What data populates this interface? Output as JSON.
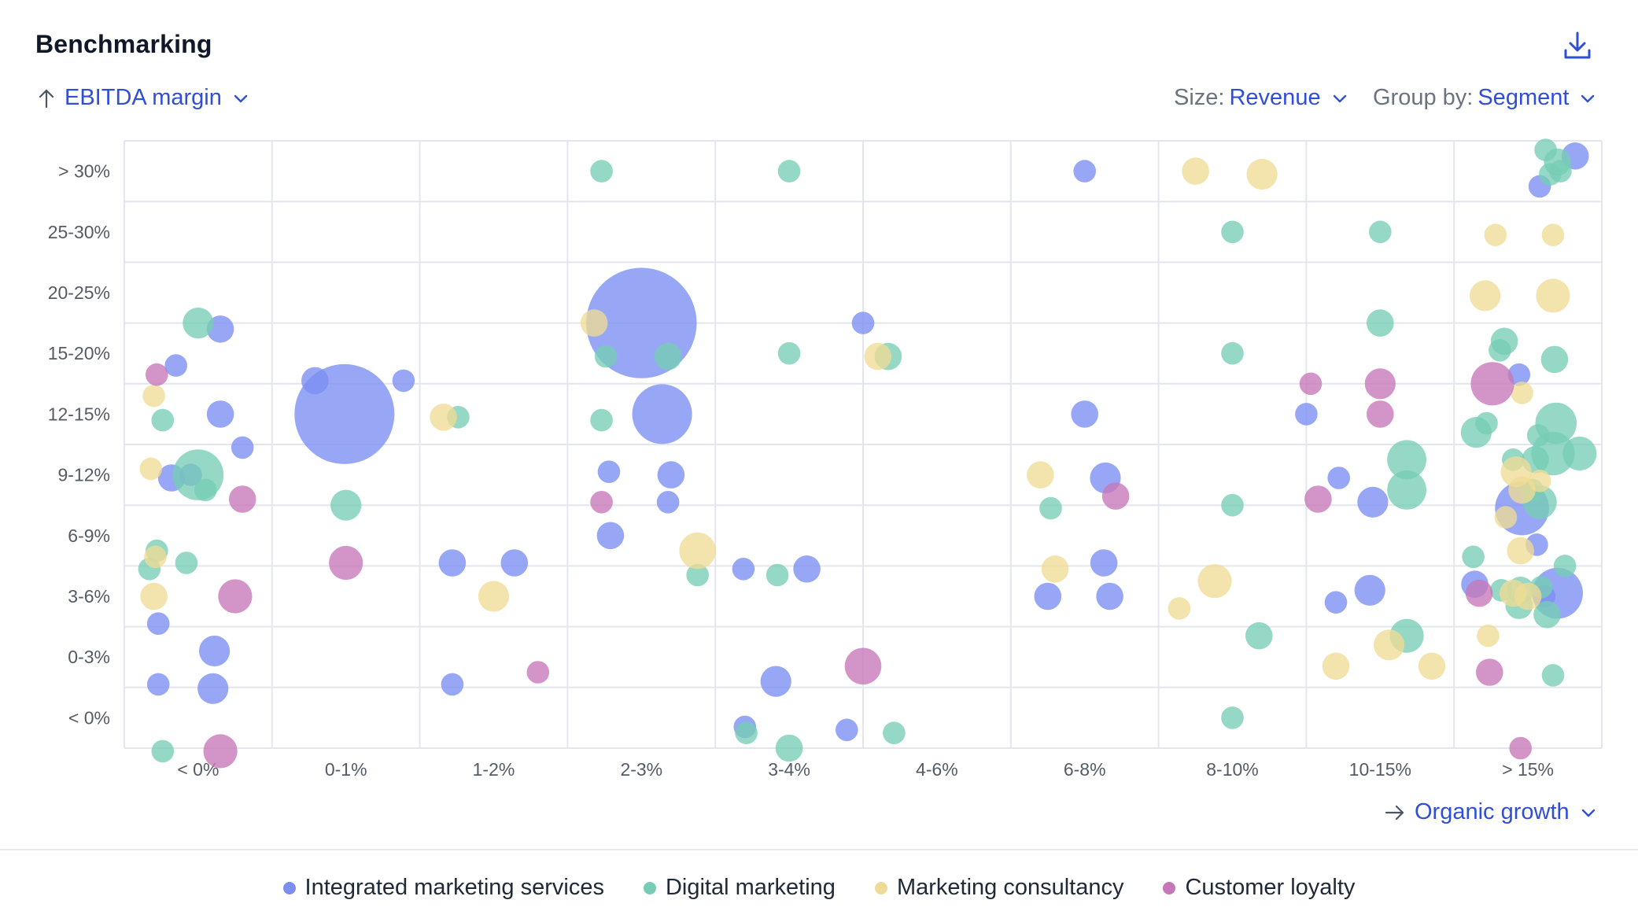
{
  "header": {
    "title": "Benchmarking",
    "download_icon": "download-icon"
  },
  "controls": {
    "y_axis": {
      "arrow_icon": "arrow-up-icon",
      "label": "EBITDA margin",
      "chevron_icon": "chevron-down-icon"
    },
    "size": {
      "prefix": "Size:",
      "value": "Revenue",
      "chevron_icon": "chevron-down-icon"
    },
    "group_by": {
      "prefix": "Group by:",
      "value": "Segment",
      "chevron_icon": "chevron-down-icon"
    },
    "x_axis": {
      "arrow_icon": "arrow-right-icon",
      "label": "Organic growth",
      "chevron_icon": "chevron-down-icon"
    }
  },
  "legend": [
    {
      "label": "Integrated marketing services",
      "color": "#7b8ef2"
    },
    {
      "label": "Digital marketing",
      "color": "#76cdb5"
    },
    {
      "label": "Marketing consultancy",
      "color": "#efdb95"
    },
    {
      "label": "Customer loyalty",
      "color": "#c777b8"
    }
  ],
  "chart_data": {
    "type": "scatter",
    "title": "Benchmarking",
    "xlabel": "Organic growth",
    "ylabel": "EBITDA margin",
    "size_by": "Revenue",
    "group_by": "Segment",
    "x_categories": [
      "< 0%",
      "0-1%",
      "1-2%",
      "2-3%",
      "3-4%",
      "4-6%",
      "6-8%",
      "8-10%",
      "10-15%",
      "> 15%"
    ],
    "y_categories": [
      "< 0%",
      "0-3%",
      "3-6%",
      "6-9%",
      "9-12%",
      "12-15%",
      "15-20%",
      "20-25%",
      "25-30%",
      "> 30%"
    ],
    "grid": true,
    "legend_position": "bottom",
    "series": [
      {
        "name": "Integrated marketing services",
        "color": "#7b8ef2",
        "points": [
          [
            0.65,
            6.9,
            2
          ],
          [
            0.35,
            6.3,
            1
          ],
          [
            0.65,
            5.5,
            2
          ],
          [
            0.32,
            4.45,
            2
          ],
          [
            0.45,
            4.5,
            1
          ],
          [
            0.8,
            4.95,
            1
          ],
          [
            0.23,
            2.05,
            1
          ],
          [
            0.61,
            1.6,
            3
          ],
          [
            0.23,
            1.05,
            1
          ],
          [
            0.6,
            0.98,
            3
          ],
          [
            1.29,
            6.05,
            2
          ],
          [
            1.89,
            6.05,
            1
          ],
          [
            1.49,
            5.5,
            60
          ],
          [
            2.22,
            3.05,
            2
          ],
          [
            2.64,
            3.05,
            2
          ],
          [
            2.22,
            1.05,
            1
          ],
          [
            3.5,
            7.0,
            75
          ],
          [
            3.29,
            3.5,
            2
          ],
          [
            3.64,
            5.5,
            18
          ],
          [
            3.28,
            4.55,
            1
          ],
          [
            3.7,
            4.5,
            2
          ],
          [
            3.68,
            4.05,
            1
          ],
          [
            4.2,
            0.35,
            1
          ],
          [
            4.41,
            1.1,
            3
          ],
          [
            5.0,
            7.0,
            1
          ],
          [
            4.19,
            2.95,
            1
          ],
          [
            4.62,
            2.95,
            2
          ],
          [
            4.89,
            0.3,
            1
          ],
          [
            6.5,
            9.5,
            1
          ],
          [
            6.5,
            5.5,
            2
          ],
          [
            6.64,
            4.45,
            3
          ],
          [
            6.63,
            3.05,
            2
          ],
          [
            6.25,
            2.5,
            2
          ],
          [
            6.67,
            2.5,
            2
          ],
          [
            8.0,
            5.5,
            1
          ],
          [
            8.22,
            4.45,
            1
          ],
          [
            8.45,
            4.05,
            3
          ],
          [
            8.2,
            2.4,
            1
          ],
          [
            8.43,
            2.6,
            3
          ],
          [
            9.82,
            9.75,
            2
          ],
          [
            9.58,
            9.25,
            1
          ],
          [
            9.44,
            6.15,
            1
          ],
          [
            9.46,
            3.95,
            14
          ],
          [
            9.56,
            3.35,
            1
          ],
          [
            9.14,
            2.7,
            2
          ],
          [
            9.61,
            2.5,
            1
          ],
          [
            9.7,
            2.55,
            12
          ]
        ]
      },
      {
        "name": "Digital marketing",
        "color": "#76cdb5",
        "points": [
          [
            0.5,
            7.0,
            3
          ],
          [
            0.26,
            5.4,
            1
          ],
          [
            0.5,
            4.5,
            12
          ],
          [
            0.55,
            4.25,
            1
          ],
          [
            0.22,
            3.25,
            1
          ],
          [
            0.42,
            3.05,
            1
          ],
          [
            0.17,
            2.95,
            1
          ],
          [
            0.26,
            -0.05,
            1
          ],
          [
            1.5,
            4.0,
            3
          ],
          [
            2.26,
            5.45,
            1
          ],
          [
            3.23,
            9.5,
            1
          ],
          [
            3.26,
            6.45,
            1
          ],
          [
            3.68,
            6.45,
            2
          ],
          [
            3.23,
            5.4,
            1
          ],
          [
            4.5,
            9.5,
            1
          ],
          [
            4.5,
            6.5,
            1
          ],
          [
            3.88,
            2.85,
            1
          ],
          [
            4.42,
            2.85,
            1
          ],
          [
            4.21,
            0.25,
            1
          ],
          [
            4.5,
            -0.0,
            2
          ],
          [
            5.17,
            6.45,
            2
          ],
          [
            5.21,
            0.25,
            1
          ],
          [
            6.27,
            3.95,
            1
          ],
          [
            7.5,
            8.5,
            1
          ],
          [
            7.5,
            6.5,
            1
          ],
          [
            7.5,
            4.0,
            1
          ],
          [
            7.68,
            1.85,
            2
          ],
          [
            7.5,
            0.5,
            1
          ],
          [
            8.5,
            8.5,
            1
          ],
          [
            8.5,
            7.0,
            2
          ],
          [
            8.68,
            4.75,
            6
          ],
          [
            8.68,
            4.25,
            6
          ],
          [
            8.68,
            1.85,
            4
          ],
          [
            9.62,
            9.85,
            1
          ],
          [
            9.7,
            9.65,
            2
          ],
          [
            9.65,
            9.45,
            1
          ],
          [
            9.72,
            9.5,
            1
          ],
          [
            9.34,
            6.7,
            2
          ],
          [
            9.31,
            6.55,
            1
          ],
          [
            9.68,
            6.4,
            2
          ],
          [
            9.15,
            5.2,
            3
          ],
          [
            9.22,
            5.35,
            1
          ],
          [
            9.57,
            5.15,
            1
          ],
          [
            9.69,
            5.35,
            7
          ],
          [
            9.67,
            4.85,
            8
          ],
          [
            9.85,
            4.85,
            4
          ],
          [
            9.4,
            4.75,
            1
          ],
          [
            9.55,
            4.75,
            2
          ],
          [
            9.53,
            4.25,
            1
          ],
          [
            9.58,
            4.05,
            4
          ],
          [
            9.13,
            3.15,
            1
          ],
          [
            9.75,
            3.0,
            1
          ],
          [
            9.59,
            2.65,
            1
          ],
          [
            9.32,
            2.6,
            1
          ],
          [
            9.45,
            2.6,
            2
          ],
          [
            9.44,
            2.35,
            2
          ],
          [
            9.63,
            2.2,
            2
          ],
          [
            9.67,
            1.2,
            1
          ]
        ]
      },
      {
        "name": "Marketing consultancy",
        "color": "#efdb95",
        "points": [
          [
            0.18,
            4.6,
            1
          ],
          [
            0.21,
            3.15,
            1
          ],
          [
            0.2,
            5.8,
            1
          ],
          [
            0.2,
            2.5,
            2
          ],
          [
            2.16,
            5.45,
            2
          ],
          [
            3.18,
            7.0,
            2
          ],
          [
            2.5,
            2.5,
            3
          ],
          [
            3.88,
            3.25,
            5
          ],
          [
            5.1,
            6.45,
            2
          ],
          [
            6.2,
            4.5,
            2
          ],
          [
            6.3,
            2.95,
            2
          ],
          [
            7.25,
            9.5,
            2
          ],
          [
            7.7,
            9.45,
            3
          ],
          [
            7.14,
            2.3,
            1
          ],
          [
            7.38,
            2.75,
            4
          ],
          [
            8.2,
            1.35,
            2
          ],
          [
            8.56,
            1.7,
            3
          ],
          [
            8.85,
            1.35,
            2
          ],
          [
            9.28,
            8.45,
            1
          ],
          [
            9.67,
            8.45,
            1
          ],
          [
            9.21,
            7.45,
            3
          ],
          [
            9.67,
            7.45,
            4
          ],
          [
            9.46,
            5.85,
            1
          ],
          [
            9.42,
            4.55,
            3
          ],
          [
            9.58,
            4.4,
            1
          ],
          [
            9.46,
            4.25,
            2
          ],
          [
            9.35,
            3.8,
            1
          ],
          [
            9.45,
            3.25,
            2
          ],
          [
            9.5,
            2.5,
            2
          ],
          [
            9.4,
            2.55,
            2
          ],
          [
            9.23,
            1.85,
            1
          ]
        ]
      },
      {
        "name": "Customer loyalty",
        "color": "#c777b8",
        "points": [
          [
            0.22,
            6.15,
            1
          ],
          [
            0.8,
            4.1,
            2
          ],
          [
            0.75,
            2.5,
            4
          ],
          [
            0.65,
            -0.05,
            4
          ],
          [
            1.5,
            3.05,
            4
          ],
          [
            2.8,
            1.25,
            1
          ],
          [
            3.23,
            4.05,
            1
          ],
          [
            5.0,
            1.35,
            5
          ],
          [
            6.71,
            4.15,
            2
          ],
          [
            8.03,
            6.0,
            1
          ],
          [
            8.5,
            6.0,
            3
          ],
          [
            8.5,
            5.5,
            2
          ],
          [
            8.08,
            4.1,
            2
          ],
          [
            9.26,
            6.0,
            8
          ],
          [
            9.17,
            2.55,
            2
          ],
          [
            9.24,
            1.25,
            2
          ],
          [
            9.45,
            0.0,
            1
          ]
        ]
      }
    ]
  }
}
